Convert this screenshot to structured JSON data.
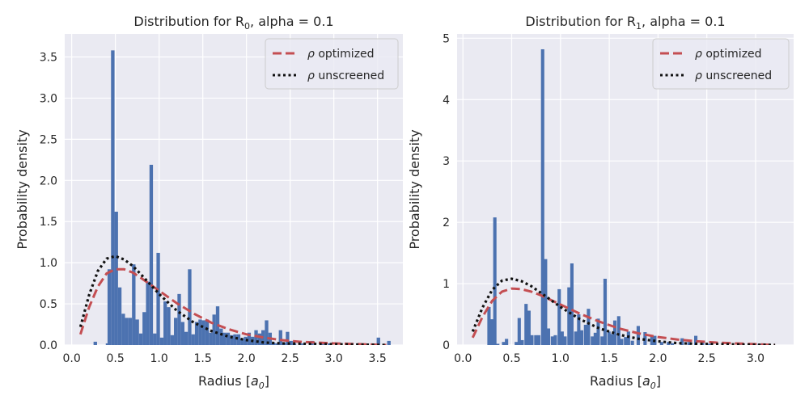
{
  "colors": {
    "panel_bg": "#eaeaf2",
    "grid": "#ffffff",
    "bar": "#4c72b0",
    "optimized": "#c44e52",
    "unscreened": "#111111",
    "legend_border": "#cccccc"
  },
  "chart_data": [
    {
      "type": "bar",
      "title_prefix": "Distribution for R",
      "title_sub": "0",
      "title_suffix": ", alpha = 0.1",
      "xlabel_prefix": "Radius [",
      "xlabel_var": "a",
      "xlabel_sub": "0",
      "xlabel_suffix": "]",
      "ylabel": "Probability density",
      "xlim": [
        -0.08,
        3.79
      ],
      "ylim": [
        0,
        3.78
      ],
      "xticks": [
        0.0,
        0.5,
        1.0,
        1.5,
        2.0,
        2.5,
        3.0,
        3.5
      ],
      "xtick_labels": [
        "0.0",
        "0.5",
        "1.0",
        "1.5",
        "2.0",
        "2.5",
        "3.0",
        "3.5"
      ],
      "yticks": [
        0.0,
        0.5,
        1.0,
        1.5,
        2.0,
        2.5,
        3.0,
        3.5
      ],
      "ytick_labels": [
        "0.0",
        "0.5",
        "1.0",
        "1.5",
        "2.0",
        "2.5",
        "3.0",
        "3.5"
      ],
      "grid": true,
      "legend_placement": "top-right",
      "legend": [
        {
          "key": "optimized",
          "symbol": "ρ",
          "label": " optimized",
          "style": "dashed"
        },
        {
          "key": "unscreened",
          "symbol": "ρ",
          "label": " unscreened",
          "style": "dotted"
        }
      ],
      "histogram": {
        "bin_width": 0.04,
        "bins": [
          [
            0.25,
            0.04
          ],
          [
            0.39,
            0.02
          ],
          [
            0.41,
            0.92
          ],
          [
            0.45,
            3.58
          ],
          [
            0.49,
            1.62
          ],
          [
            0.53,
            0.7
          ],
          [
            0.57,
            0.38
          ],
          [
            0.61,
            0.33
          ],
          [
            0.65,
            0.33
          ],
          [
            0.69,
            0.98
          ],
          [
            0.73,
            0.31
          ],
          [
            0.77,
            0.14
          ],
          [
            0.81,
            0.4
          ],
          [
            0.85,
            0.77
          ],
          [
            0.89,
            2.19
          ],
          [
            0.93,
            0.14
          ],
          [
            0.97,
            1.12
          ],
          [
            1.01,
            0.09
          ],
          [
            1.05,
            0.53
          ],
          [
            1.09,
            0.46
          ],
          [
            1.13,
            0.12
          ],
          [
            1.17,
            0.33
          ],
          [
            1.21,
            0.62
          ],
          [
            1.25,
            0.28
          ],
          [
            1.29,
            0.16
          ],
          [
            1.33,
            0.92
          ],
          [
            1.37,
            0.13
          ],
          [
            1.41,
            0.28
          ],
          [
            1.45,
            0.31
          ],
          [
            1.49,
            0.3
          ],
          [
            1.53,
            0.31
          ],
          [
            1.57,
            0.15
          ],
          [
            1.61,
            0.37
          ],
          [
            1.65,
            0.47
          ],
          [
            1.69,
            0.2
          ],
          [
            1.73,
            0.15
          ],
          [
            1.77,
            0.15
          ],
          [
            1.81,
            0.12
          ],
          [
            1.85,
            0.13
          ],
          [
            1.89,
            0.13
          ],
          [
            1.93,
            0.08
          ],
          [
            1.97,
            0.1
          ],
          [
            2.01,
            0.15
          ],
          [
            2.05,
            0.1
          ],
          [
            2.09,
            0.18
          ],
          [
            2.13,
            0.14
          ],
          [
            2.17,
            0.18
          ],
          [
            2.21,
            0.3
          ],
          [
            2.25,
            0.15
          ],
          [
            2.29,
            0.03
          ],
          [
            2.33,
            0.02
          ],
          [
            2.37,
            0.18
          ],
          [
            2.41,
            0.03
          ],
          [
            2.45,
            0.16
          ],
          [
            2.49,
            0.05
          ],
          [
            2.53,
            0.02
          ],
          [
            2.61,
            0.02
          ],
          [
            2.73,
            0.05
          ],
          [
            2.85,
            0.02
          ],
          [
            2.93,
            0.02
          ],
          [
            3.49,
            0.09
          ],
          [
            3.61,
            0.05
          ]
        ]
      },
      "curves": {
        "optimized": {
          "x": [
            0.1,
            0.2,
            0.3,
            0.4,
            0.5,
            0.6,
            0.7,
            0.8,
            1.0,
            1.2,
            1.4,
            1.6,
            1.8,
            2.0,
            2.2,
            2.4,
            2.6,
            3.0,
            3.6
          ],
          "y": [
            0.13,
            0.46,
            0.71,
            0.87,
            0.92,
            0.92,
            0.88,
            0.81,
            0.66,
            0.51,
            0.38,
            0.27,
            0.19,
            0.13,
            0.09,
            0.06,
            0.04,
            0.02,
            0.0
          ]
        },
        "unscreened": {
          "x": [
            0.1,
            0.2,
            0.3,
            0.4,
            0.5,
            0.6,
            0.7,
            0.8,
            1.0,
            1.2,
            1.4,
            1.6,
            1.8,
            2.0,
            2.2,
            2.4,
            3.6
          ],
          "y": [
            0.22,
            0.61,
            0.9,
            1.05,
            1.08,
            1.04,
            0.96,
            0.85,
            0.62,
            0.42,
            0.27,
            0.17,
            0.1,
            0.06,
            0.03,
            0.02,
            0.0
          ]
        }
      }
    },
    {
      "type": "bar",
      "title_prefix": "Distribution for R",
      "title_sub": "1",
      "title_suffix": ", alpha = 0.1",
      "xlabel_prefix": "Radius [",
      "xlabel_var": "a",
      "xlabel_sub": "0",
      "xlabel_suffix": "]",
      "ylabel": "Probability density",
      "xlim": [
        -0.06,
        3.39
      ],
      "ylim": [
        0,
        5.07
      ],
      "xticks": [
        0.0,
        0.5,
        1.0,
        1.5,
        2.0,
        2.5,
        3.0
      ],
      "xtick_labels": [
        "0.0",
        "0.5",
        "1.0",
        "1.5",
        "2.0",
        "2.5",
        "3.0"
      ],
      "yticks": [
        0,
        1,
        2,
        3,
        4,
        5
      ],
      "ytick_labels": [
        "0",
        "1",
        "2",
        "3",
        "4",
        "5"
      ],
      "grid": true,
      "legend_placement": "top-right",
      "legend": [
        {
          "key": "optimized",
          "symbol": "ρ",
          "label": " optimized",
          "style": "dashed"
        },
        {
          "key": "unscreened",
          "symbol": "ρ",
          "label": " unscreened",
          "style": "dotted"
        }
      ],
      "histogram": {
        "bin_width": 0.034,
        "bins": [
          [
            0.25,
            0.62
          ],
          [
            0.28,
            0.42
          ],
          [
            0.31,
            2.08
          ],
          [
            0.34,
            0.02
          ],
          [
            0.4,
            0.05
          ],
          [
            0.43,
            0.1
          ],
          [
            0.53,
            0.05
          ],
          [
            0.56,
            0.44
          ],
          [
            0.59,
            0.08
          ],
          [
            0.63,
            0.67
          ],
          [
            0.66,
            0.56
          ],
          [
            0.69,
            0.16
          ],
          [
            0.73,
            0.16
          ],
          [
            0.76,
            0.16
          ],
          [
            0.8,
            4.82
          ],
          [
            0.83,
            1.4
          ],
          [
            0.86,
            0.27
          ],
          [
            0.9,
            0.14
          ],
          [
            0.93,
            0.16
          ],
          [
            0.97,
            0.91
          ],
          [
            1.0,
            0.22
          ],
          [
            1.03,
            0.14
          ],
          [
            1.07,
            0.94
          ],
          [
            1.1,
            1.33
          ],
          [
            1.14,
            0.22
          ],
          [
            1.17,
            0.5
          ],
          [
            1.2,
            0.24
          ],
          [
            1.24,
            0.33
          ],
          [
            1.27,
            0.59
          ],
          [
            1.31,
            0.14
          ],
          [
            1.34,
            0.2
          ],
          [
            1.37,
            0.43
          ],
          [
            1.41,
            0.14
          ],
          [
            1.44,
            1.08
          ],
          [
            1.48,
            0.22
          ],
          [
            1.51,
            0.18
          ],
          [
            1.54,
            0.4
          ],
          [
            1.58,
            0.47
          ],
          [
            1.61,
            0.1
          ],
          [
            1.65,
            0.13
          ],
          [
            1.68,
            0.22
          ],
          [
            1.72,
            0.07
          ],
          [
            1.78,
            0.31
          ],
          [
            1.85,
            0.21
          ],
          [
            1.92,
            0.15
          ],
          [
            1.95,
            0.15
          ],
          [
            2.02,
            0.05
          ],
          [
            2.09,
            0.05
          ],
          [
            2.13,
            0.03
          ],
          [
            2.23,
            0.11
          ],
          [
            2.3,
            0.05
          ],
          [
            2.37,
            0.15
          ],
          [
            2.44,
            0.05
          ],
          [
            2.51,
            0.02
          ],
          [
            2.82,
            0.02
          ],
          [
            3.02,
            0.02
          ]
        ]
      },
      "curves": {
        "optimized": {
          "x": [
            0.1,
            0.2,
            0.3,
            0.4,
            0.5,
            0.6,
            0.7,
            0.8,
            1.0,
            1.2,
            1.4,
            1.6,
            1.8,
            2.0,
            2.2,
            2.4,
            2.6,
            3.2
          ],
          "y": [
            0.12,
            0.46,
            0.72,
            0.87,
            0.92,
            0.91,
            0.87,
            0.81,
            0.66,
            0.51,
            0.38,
            0.27,
            0.19,
            0.13,
            0.09,
            0.06,
            0.04,
            0.0
          ]
        },
        "unscreened": {
          "x": [
            0.1,
            0.2,
            0.3,
            0.4,
            0.5,
            0.6,
            0.7,
            0.8,
            1.0,
            1.2,
            1.4,
            1.6,
            1.8,
            2.0,
            2.2,
            2.4,
            3.2
          ],
          "y": [
            0.22,
            0.61,
            0.9,
            1.05,
            1.08,
            1.04,
            0.96,
            0.85,
            0.62,
            0.42,
            0.27,
            0.17,
            0.1,
            0.06,
            0.03,
            0.02,
            0.0
          ]
        }
      }
    }
  ]
}
